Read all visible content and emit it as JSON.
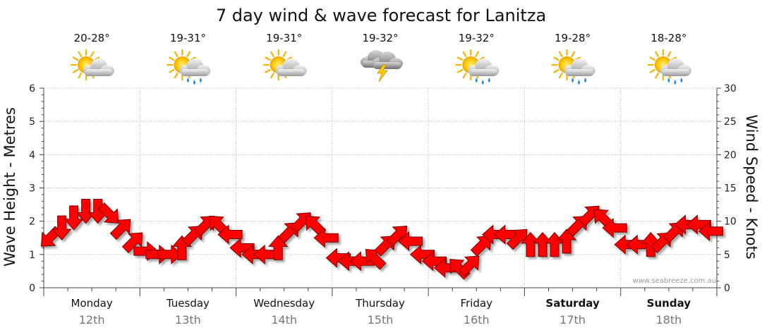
{
  "title": "7 day wind & wave forecast for Lanitza",
  "credit": "www.seabreeze.com.au",
  "chart_data": {
    "type": "line",
    "title": "7 day wind & wave forecast for Lanitza",
    "ylabel_left": "Wave Height - Metres",
    "ylabel_right": "Wind Speed - Knots",
    "ylim_left": [
      0,
      6
    ],
    "ylim_right": [
      0,
      30
    ],
    "yticks_left": [
      "0",
      "1",
      "2",
      "3",
      "4",
      "5",
      "6"
    ],
    "yticks_right": [
      "0",
      "5",
      "10",
      "15",
      "20",
      "25",
      "30"
    ],
    "grid": true,
    "days": [
      {
        "name": "Monday",
        "date": "12th",
        "bold": false,
        "temp": "20-28°",
        "weather": "partly-cloudy"
      },
      {
        "name": "Tuesday",
        "date": "13th",
        "bold": false,
        "temp": "19-31°",
        "weather": "showers"
      },
      {
        "name": "Wednesday",
        "date": "14th",
        "bold": false,
        "temp": "19-31°",
        "weather": "partly-cloudy"
      },
      {
        "name": "Thursday",
        "date": "15th",
        "bold": false,
        "temp": "19-32°",
        "weather": "thunderstorm"
      },
      {
        "name": "Friday",
        "date": "16th",
        "bold": false,
        "temp": "19-32°",
        "weather": "showers"
      },
      {
        "name": "Saturday",
        "date": "17th",
        "bold": true,
        "temp": "19-28°",
        "weather": "showers"
      },
      {
        "name": "Sunday",
        "date": "18th",
        "bold": true,
        "temp": "18-28°",
        "weather": "showers"
      }
    ],
    "wind_series": {
      "name": "Wind Speed",
      "color": "#ff0000",
      "x_days": [
        0.0,
        0.125,
        0.25,
        0.375,
        0.5,
        0.625,
        0.75,
        0.875,
        1.0,
        1.125,
        1.25,
        1.375,
        1.5,
        1.625,
        1.75,
        1.875,
        2.0,
        2.125,
        2.25,
        2.375,
        2.5,
        2.625,
        2.75,
        2.875,
        3.0,
        3.125,
        3.25,
        3.375,
        3.5,
        3.625,
        3.75,
        3.875,
        4.0,
        4.125,
        4.25,
        4.375,
        4.5,
        4.625,
        4.75,
        4.875,
        5.0,
        5.125,
        5.25,
        5.375,
        5.5,
        5.625,
        5.75,
        5.875,
        6.0,
        6.125,
        6.25,
        6.375,
        6.5,
        6.625,
        6.75,
        6.875
      ],
      "knots": [
        7.5,
        9,
        10.5,
        11.5,
        11.5,
        11,
        9,
        7,
        5.5,
        5,
        5,
        6,
        8,
        9.5,
        9.5,
        8,
        6,
        5,
        5,
        6,
        8.5,
        10,
        9.5,
        7.5,
        4.5,
        4,
        4,
        4.5,
        6.5,
        8,
        7,
        5,
        4,
        3,
        3,
        3.5,
        6.5,
        8,
        8,
        7.5,
        6.5,
        6.5,
        6.5,
        7,
        9.5,
        11,
        10.5,
        9,
        6.5,
        6.5,
        6.5,
        7,
        8.5,
        9.5,
        9.5,
        8.5
      ],
      "directions": [
        "SW",
        "S",
        "S",
        "S",
        "S",
        "SE",
        "NE",
        "NE",
        "E",
        "E",
        "E",
        "N",
        "NE",
        "NE",
        "NW",
        "W",
        "W",
        "W",
        "W",
        "N",
        "NE",
        "NE",
        "NW",
        "W",
        "W",
        "W",
        "W",
        "NW",
        "NE",
        "NE",
        "W",
        "W",
        "W",
        "W",
        "NW",
        "NE",
        "NE",
        "W",
        "W",
        "NE",
        "N",
        "N",
        "N",
        "N",
        "NE",
        "NE",
        "NW",
        "W",
        "W",
        "W",
        "N",
        "NE",
        "NE",
        "W",
        "W",
        "W"
      ],
      "direction_angles": [
        -135,
        180,
        180,
        180,
        180,
        135,
        45,
        45,
        90,
        90,
        90,
        0,
        45,
        45,
        -45,
        -90,
        -90,
        -90,
        -90,
        0,
        45,
        45,
        -45,
        -90,
        -90,
        -90,
        -90,
        -45,
        45,
        45,
        -90,
        -90,
        -90,
        -90,
        -45,
        45,
        45,
        -90,
        -90,
        45,
        0,
        0,
        0,
        0,
        45,
        45,
        -45,
        -90,
        -90,
        -90,
        0,
        45,
        45,
        -90,
        -90,
        -90
      ]
    }
  }
}
